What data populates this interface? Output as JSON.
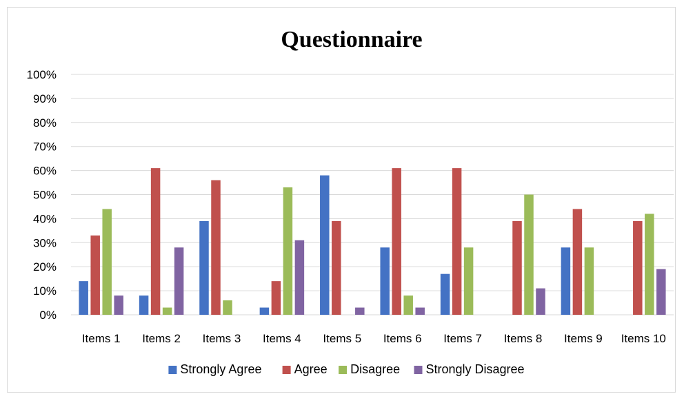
{
  "chart_data": {
    "type": "bar",
    "title": "Questionnaire",
    "categories": [
      "Items 1",
      "Items 2",
      "Items 3",
      "Items 4",
      "Items 5",
      "Items 6",
      "Items 7",
      "Items 8",
      "Items 9",
      "Items 10"
    ],
    "series": [
      {
        "name": "Strongly Agree",
        "color": "#4472C4",
        "values": [
          14,
          8,
          39,
          3,
          58,
          28,
          17,
          0,
          28,
          0
        ]
      },
      {
        "name": "Agree",
        "color": "#C0504D",
        "values": [
          33,
          61,
          56,
          14,
          39,
          61,
          61,
          39,
          44,
          39
        ]
      },
      {
        "name": "Disagree",
        "color": "#9BBB59",
        "values": [
          44,
          3,
          6,
          53,
          0,
          8,
          28,
          50,
          28,
          42
        ]
      },
      {
        "name": "Strongly Disagree",
        "color": "#8064A2",
        "values": [
          8,
          28,
          0,
          31,
          3,
          3,
          0,
          11,
          0,
          19
        ]
      }
    ],
    "yticks": [
      "0%",
      "10%",
      "20%",
      "30%",
      "40%",
      "50%",
      "60%",
      "70%",
      "80%",
      "90%",
      "100%"
    ],
    "ylim": [
      0,
      100
    ],
    "grid": true,
    "gridline_color": "#d9d9d9",
    "legend_position": "bottom"
  }
}
